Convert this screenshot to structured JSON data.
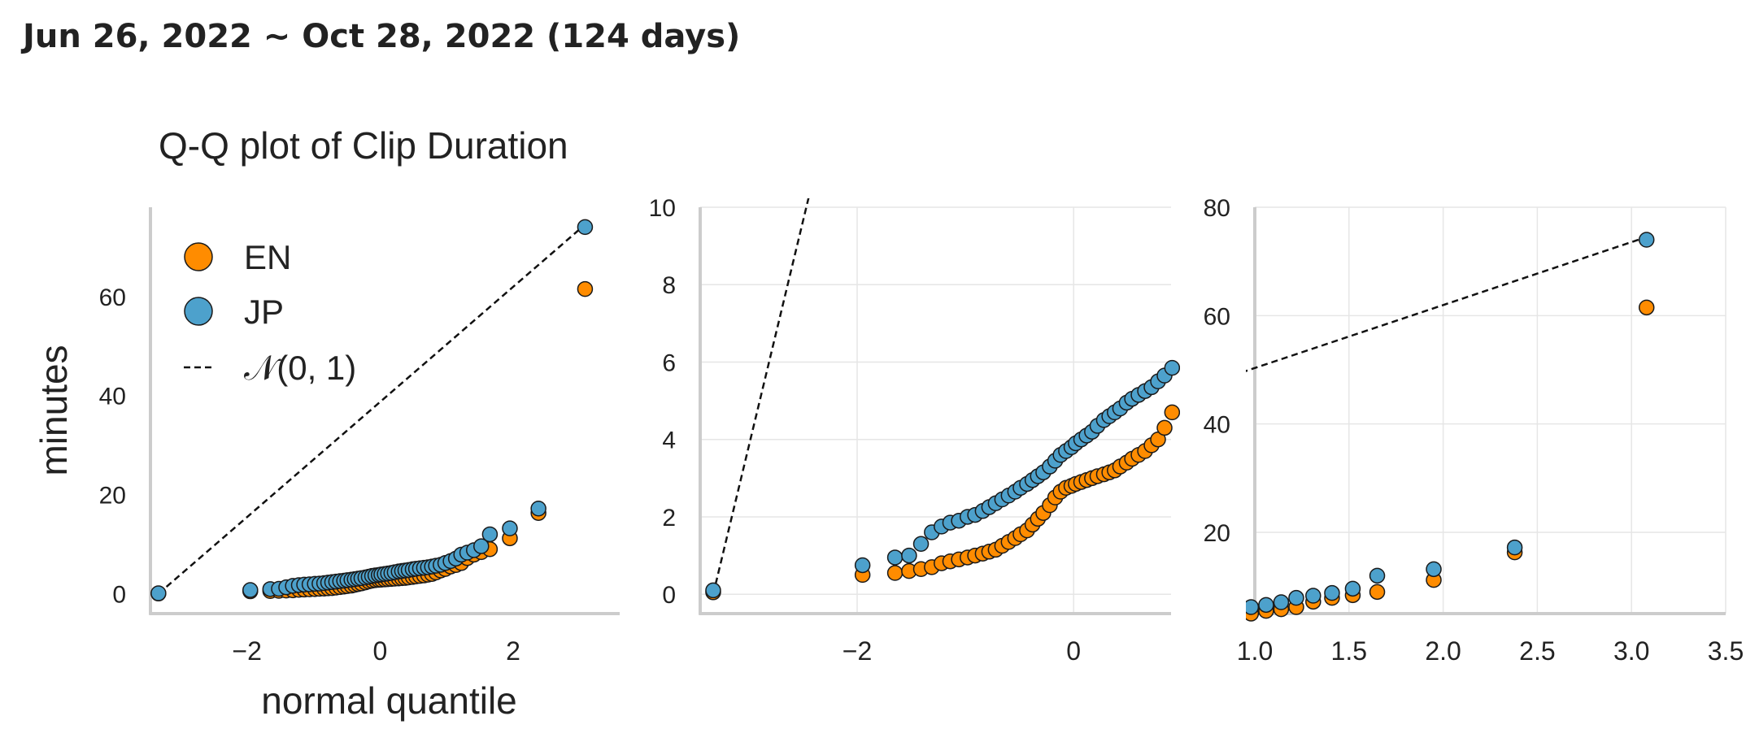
{
  "header": {
    "date_range": "Jun 26, 2022 ~ Oct 28, 2022 (124 days)"
  },
  "colors": {
    "EN": "#ff8c00",
    "JP": "#4da1cc",
    "reference_line": "#111111",
    "axis": "#cccccc",
    "grid": "#e6e6e6",
    "text": "#222222"
  },
  "chart_data": [
    {
      "type": "scatter",
      "title": "Q-Q plot of Clip Duration",
      "xlabel": "normal quantile",
      "ylabel": "minutes",
      "xlim": [
        -3.45,
        3.6
      ],
      "ylim": [
        -4,
        78
      ],
      "grid": false,
      "legend": "upper-left",
      "xticks": [
        "−2",
        "0",
        "2"
      ],
      "yticks": [
        "0",
        "20",
        "40",
        "60"
      ],
      "legend_entries": [
        "EN",
        "JP",
        "𝒩(0, 1)"
      ],
      "marker_size": 9,
      "series_ref": "shared"
    },
    {
      "type": "scatter",
      "title": "",
      "xlabel": "",
      "ylabel": "",
      "xlim": [
        -3.45,
        0.9
      ],
      "ylim": [
        -0.5,
        10
      ],
      "grid": true,
      "xticks": [
        "−2",
        "0"
      ],
      "yticks": [
        "0",
        "2",
        "4",
        "6",
        "8",
        "10"
      ],
      "marker_size": 9,
      "series_ref": "shared"
    },
    {
      "type": "scatter",
      "title": "",
      "xlabel": "",
      "ylabel": "",
      "xlim": [
        1.0,
        3.5
      ],
      "ylim": [
        5,
        80
      ],
      "grid": true,
      "xticks": [
        "1.0",
        "1.5",
        "2.0",
        "2.5",
        "3.0",
        "3.5"
      ],
      "yticks": [
        "20",
        "40",
        "60",
        "80"
      ],
      "marker_size": 9,
      "series_ref": "shared"
    }
  ],
  "series": [
    {
      "name": "EN",
      "color": "#ff8c00",
      "points": [
        [
          -3.33,
          0.05
        ],
        [
          -1.95,
          0.5
        ],
        [
          -1.65,
          0.55
        ],
        [
          -1.52,
          0.6
        ],
        [
          -1.41,
          0.65
        ],
        [
          -1.31,
          0.7
        ],
        [
          -1.22,
          0.8
        ],
        [
          -1.14,
          0.85
        ],
        [
          -1.06,
          0.9
        ],
        [
          -0.98,
          0.95
        ],
        [
          -0.91,
          1.0
        ],
        [
          -0.84,
          1.05
        ],
        [
          -0.78,
          1.1
        ],
        [
          -0.72,
          1.15
        ],
        [
          -0.66,
          1.25
        ],
        [
          -0.6,
          1.35
        ],
        [
          -0.54,
          1.45
        ],
        [
          -0.49,
          1.55
        ],
        [
          -0.43,
          1.65
        ],
        [
          -0.38,
          1.8
        ],
        [
          -0.33,
          1.95
        ],
        [
          -0.28,
          2.1
        ],
        [
          -0.22,
          2.3
        ],
        [
          -0.17,
          2.5
        ],
        [
          -0.12,
          2.65
        ],
        [
          -0.07,
          2.75
        ],
        [
          -0.02,
          2.8
        ],
        [
          0.02,
          2.85
        ],
        [
          0.07,
          2.9
        ],
        [
          0.12,
          2.95
        ],
        [
          0.17,
          3.0
        ],
        [
          0.22,
          3.05
        ],
        [
          0.28,
          3.1
        ],
        [
          0.33,
          3.15
        ],
        [
          0.38,
          3.2
        ],
        [
          0.43,
          3.3
        ],
        [
          0.49,
          3.4
        ],
        [
          0.54,
          3.5
        ],
        [
          0.6,
          3.6
        ],
        [
          0.66,
          3.7
        ],
        [
          0.72,
          3.85
        ],
        [
          0.78,
          4.0
        ],
        [
          0.84,
          4.3
        ],
        [
          0.91,
          4.7
        ],
        [
          0.98,
          5.0
        ],
        [
          1.06,
          5.5
        ],
        [
          1.14,
          5.8
        ],
        [
          1.22,
          6.2
        ],
        [
          1.31,
          7.2
        ],
        [
          1.41,
          7.9
        ],
        [
          1.52,
          8.4
        ],
        [
          1.65,
          9.0
        ],
        [
          1.95,
          11.2
        ],
        [
          2.38,
          16.3
        ],
        [
          3.08,
          61.5
        ]
      ]
    },
    {
      "name": "JP",
      "color": "#4da1cc",
      "points": [
        [
          -3.33,
          0.1
        ],
        [
          -1.95,
          0.75
        ],
        [
          -1.65,
          0.95
        ],
        [
          -1.52,
          1.0
        ],
        [
          -1.41,
          1.3
        ],
        [
          -1.31,
          1.6
        ],
        [
          -1.22,
          1.75
        ],
        [
          -1.14,
          1.85
        ],
        [
          -1.06,
          1.9
        ],
        [
          -0.98,
          2.0
        ],
        [
          -0.91,
          2.05
        ],
        [
          -0.84,
          2.15
        ],
        [
          -0.78,
          2.25
        ],
        [
          -0.72,
          2.35
        ],
        [
          -0.66,
          2.45
        ],
        [
          -0.6,
          2.55
        ],
        [
          -0.54,
          2.65
        ],
        [
          -0.49,
          2.75
        ],
        [
          -0.43,
          2.85
        ],
        [
          -0.38,
          2.95
        ],
        [
          -0.33,
          3.05
        ],
        [
          -0.28,
          3.15
        ],
        [
          -0.22,
          3.3
        ],
        [
          -0.17,
          3.45
        ],
        [
          -0.12,
          3.6
        ],
        [
          -0.07,
          3.7
        ],
        [
          -0.02,
          3.8
        ],
        [
          0.02,
          3.9
        ],
        [
          0.07,
          4.0
        ],
        [
          0.12,
          4.1
        ],
        [
          0.17,
          4.2
        ],
        [
          0.22,
          4.35
        ],
        [
          0.28,
          4.5
        ],
        [
          0.33,
          4.6
        ],
        [
          0.38,
          4.7
        ],
        [
          0.43,
          4.8
        ],
        [
          0.49,
          4.95
        ],
        [
          0.54,
          5.05
        ],
        [
          0.6,
          5.15
        ],
        [
          0.66,
          5.25
        ],
        [
          0.72,
          5.35
        ],
        [
          0.78,
          5.5
        ],
        [
          0.84,
          5.65
        ],
        [
          0.91,
          5.85
        ],
        [
          0.98,
          6.2
        ],
        [
          1.06,
          6.6
        ],
        [
          1.14,
          7.1
        ],
        [
          1.22,
          7.9
        ],
        [
          1.31,
          8.3
        ],
        [
          1.41,
          8.8
        ],
        [
          1.52,
          9.6
        ],
        [
          1.65,
          12.0
        ],
        [
          1.95,
          13.2
        ],
        [
          2.38,
          17.2
        ],
        [
          3.08,
          74.0
        ]
      ]
    }
  ],
  "reference_line": {
    "label": "𝒩(0, 1)",
    "from": [
      -3.33,
      0
    ],
    "to": [
      3.08,
      74.5
    ]
  }
}
